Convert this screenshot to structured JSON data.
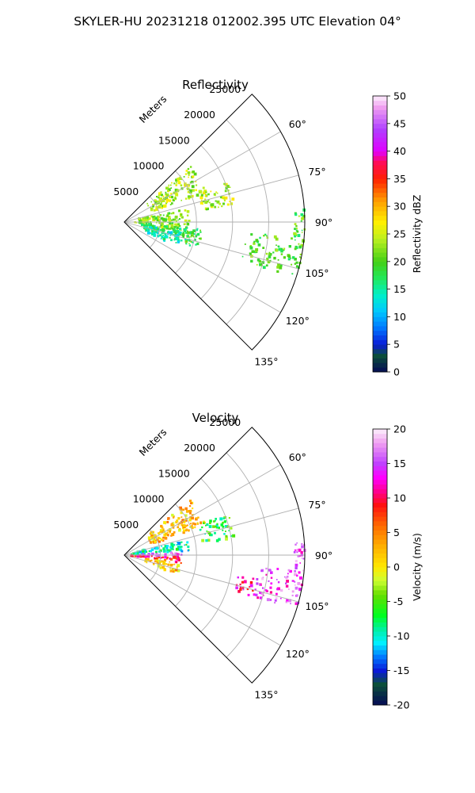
{
  "figure": {
    "title": "SKYLER-HU  20231218  012002.395 UTC Elevation 04°"
  },
  "chart_data": [
    {
      "type": "heatmap",
      "projection": "polar-sector",
      "title": "Reflectivity",
      "radial_label": "Meters",
      "azimuth_range_deg": [
        45,
        135
      ],
      "range_max_m": 25000,
      "range_tick_labels": [
        "5000",
        "10000",
        "15000",
        "20000",
        "25000"
      ],
      "range_tick_values": [
        5000,
        10000,
        15000,
        20000,
        25000
      ],
      "azimuth_tick_labels": [
        "60°",
        "75°",
        "90°",
        "105°",
        "120°",
        "135°"
      ],
      "azimuth_tick_values": [
        60,
        75,
        90,
        105,
        120,
        135
      ],
      "grid": true,
      "colorbar": {
        "label": "Reflectivity dBZ",
        "range": [
          0,
          50
        ],
        "tick_labels": [
          "0",
          "5",
          "10",
          "15",
          "20",
          "25",
          "30",
          "35",
          "40",
          "45",
          "50"
        ],
        "tick_values": [
          0,
          5,
          10,
          15,
          20,
          25,
          30,
          35,
          40,
          45,
          50
        ]
      },
      "echo_regions": [
        {
          "az": [
            50,
            70
          ],
          "r": [
            4000,
            12000
          ],
          "value": 24
        },
        {
          "az": [
            68,
            82
          ],
          "r": [
            11000,
            15500
          ],
          "value": 24
        },
        {
          "az": [
            78,
            100
          ],
          "r": [
            1500,
            9000
          ],
          "value": 22
        },
        {
          "az": [
            95,
            110
          ],
          "r": [
            2500,
            11000
          ],
          "value": 18
        },
        {
          "az": [
            100,
            115
          ],
          "r": [
            3000,
            8000
          ],
          "value": 14
        },
        {
          "az": [
            95,
            108
          ],
          "r": [
            17000,
            25000
          ],
          "value": 20
        },
        {
          "az": [
            86,
            96
          ],
          "r": [
            23500,
            25000
          ],
          "value": 20
        }
      ]
    },
    {
      "type": "heatmap",
      "projection": "polar-sector",
      "title": "Velocity",
      "radial_label": "Meters",
      "azimuth_range_deg": [
        45,
        135
      ],
      "range_max_m": 25000,
      "range_tick_labels": [
        "5000",
        "10000",
        "15000",
        "20000",
        "25000"
      ],
      "range_tick_values": [
        5000,
        10000,
        15000,
        20000,
        25000
      ],
      "azimuth_tick_labels": [
        "60°",
        "75°",
        "90°",
        "105°",
        "120°",
        "135°"
      ],
      "azimuth_tick_values": [
        60,
        75,
        90,
        105,
        120,
        135
      ],
      "grid": true,
      "colorbar": {
        "label": "Velocity (m/s)",
        "range": [
          -20,
          20
        ],
        "tick_labels": [
          "-20",
          "-15",
          "-10",
          "-5",
          "0",
          "5",
          "10",
          "15",
          "20"
        ],
        "tick_values": [
          -20,
          -15,
          -10,
          -5,
          0,
          5,
          10,
          15,
          20
        ]
      },
      "echo_regions": [
        {
          "az": [
            50,
            70
          ],
          "r": [
            4000,
            12000
          ],
          "value": 2
        },
        {
          "az": [
            68,
            82
          ],
          "r": [
            11000,
            15500
          ],
          "value": -6
        },
        {
          "az": [
            76,
            87
          ],
          "r": [
            1000,
            9000
          ],
          "value": -9
        },
        {
          "az": [
            87,
            92
          ],
          "r": [
            2000,
            8000
          ],
          "value": 14
        },
        {
          "az": [
            92,
            98
          ],
          "r": [
            1000,
            8000
          ],
          "value": 9
        },
        {
          "az": [
            98,
            110
          ],
          "r": [
            3000,
            8000
          ],
          "value": 2
        },
        {
          "az": [
            100,
            108
          ],
          "r": [
            16000,
            19000
          ],
          "value": 11
        },
        {
          "az": [
            95,
            108
          ],
          "r": [
            19000,
            25000
          ],
          "value": 15
        },
        {
          "az": [
            86,
            96
          ],
          "r": [
            23500,
            25000
          ],
          "value": 15
        }
      ]
    }
  ],
  "colors": {
    "grid": "#b0b0b0",
    "reflectivity_stops": [
      [
        0,
        "#050a55"
      ],
      [
        3,
        "#0b4f3a"
      ],
      [
        5,
        "#0a1ad8"
      ],
      [
        8,
        "#0078ff"
      ],
      [
        11,
        "#00c8ff"
      ],
      [
        14,
        "#00f0c8"
      ],
      [
        17,
        "#22e85a"
      ],
      [
        20,
        "#44d016"
      ],
      [
        24,
        "#b8ef20"
      ],
      [
        27,
        "#fff200"
      ],
      [
        31,
        "#ff9e00"
      ],
      [
        35,
        "#ff2000"
      ],
      [
        38,
        "#ff0a5a"
      ],
      [
        40,
        "#e000ff"
      ],
      [
        44,
        "#b040ff"
      ],
      [
        48,
        "#f0a0f0"
      ],
      [
        50,
        "#fcf0fc"
      ]
    ],
    "velocity_stops": [
      [
        -20,
        "#050a55"
      ],
      [
        -17,
        "#0b4f3a"
      ],
      [
        -15,
        "#0a1ad8"
      ],
      [
        -13,
        "#0078ff"
      ],
      [
        -11,
        "#00f0ff"
      ],
      [
        -9,
        "#00f0a0"
      ],
      [
        -7,
        "#00ff20"
      ],
      [
        -4,
        "#66dd00"
      ],
      [
        -2,
        "#ccff33"
      ],
      [
        0,
        "#ffe800"
      ],
      [
        3,
        "#ffb000"
      ],
      [
        6,
        "#ff6a00"
      ],
      [
        9,
        "#ff1010"
      ],
      [
        11,
        "#ff0090"
      ],
      [
        13,
        "#ff00ff"
      ],
      [
        15,
        "#c040ff"
      ],
      [
        18,
        "#f0a0f0"
      ],
      [
        20,
        "#fcf0fc"
      ]
    ]
  }
}
